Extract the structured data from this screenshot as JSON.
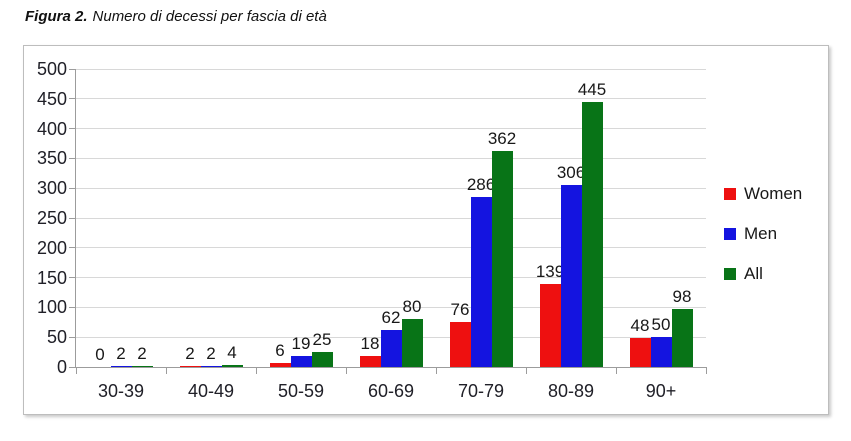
{
  "caption": {
    "label": "Figura 2.",
    "text": "Numero di decessi per fascia di età"
  },
  "chart_data": {
    "type": "bar",
    "title": "Figura 2. Numero di decessi per fascia di età",
    "categories": [
      "30-39",
      "40-49",
      "50-59",
      "60-69",
      "70-79",
      "80-89",
      "90+"
    ],
    "series": [
      {
        "name": "Women",
        "color": "#ee1010",
        "values": [
          0,
          2,
          6,
          18,
          76,
          139,
          48
        ]
      },
      {
        "name": "Men",
        "color": "#1414e0",
        "values": [
          2,
          2,
          19,
          62,
          286,
          306,
          50
        ]
      },
      {
        "name": "All",
        "color": "#087417",
        "values": [
          2,
          4,
          25,
          80,
          362,
          445,
          98
        ]
      }
    ],
    "xlabel": "",
    "ylabel": "",
    "ylim": [
      0,
      500
    ],
    "ytick_step": 50,
    "grid": true,
    "data_labels": true,
    "legend_position": "right",
    "colors": {
      "grid": "#d8d8d8",
      "axis": "#9c9c9c",
      "text": "#202028"
    }
  }
}
